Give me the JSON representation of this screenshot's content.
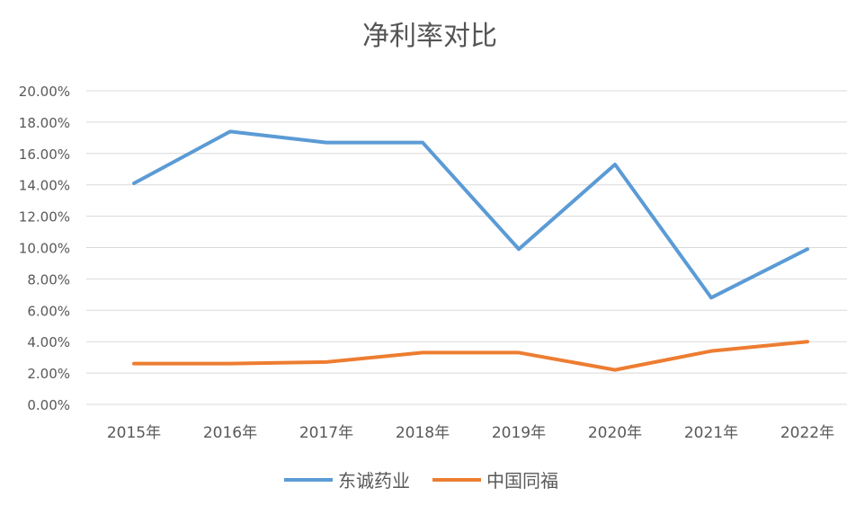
{
  "chart_data": {
    "type": "line",
    "title": "净利率对比",
    "categories": [
      "2015年",
      "2016年",
      "2017年",
      "2018年",
      "2019年",
      "2020年",
      "2021年",
      "2022年"
    ],
    "y_tick_labels": [
      "0.00%",
      "2.00%",
      "4.00%",
      "6.00%",
      "8.00%",
      "10.00%",
      "12.00%",
      "14.00%",
      "16.00%",
      "18.00%",
      "20.00%"
    ],
    "ylim": [
      0,
      20
    ],
    "y_unit": "%",
    "grid": true,
    "legend_position": "bottom",
    "series": [
      {
        "name": "东诚药业",
        "color": "#5B9BD5",
        "values": [
          14.1,
          17.4,
          16.7,
          16.7,
          9.9,
          15.3,
          6.8,
          9.9
        ]
      },
      {
        "name": "中国同福",
        "color": "#ED7D31",
        "values": [
          2.6,
          2.6,
          2.7,
          3.3,
          3.3,
          2.2,
          3.4,
          4.0
        ]
      }
    ]
  }
}
